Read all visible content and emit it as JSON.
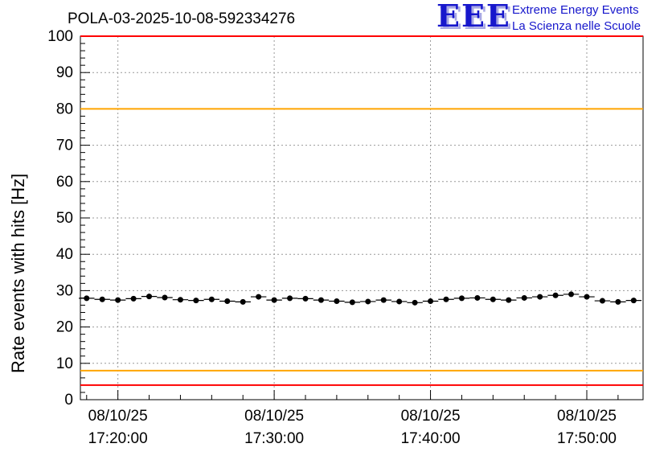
{
  "title": "POLA-03-2025-10-08-592334276",
  "logo": {
    "text": "EEE",
    "line1": "Extreme Energy Events",
    "line2": "La Scienza nelle Scuole",
    "color": "#1717cc",
    "shadow_color": "#a8a8e4"
  },
  "chart_data": {
    "type": "scatter",
    "title": "POLA-03-2025-10-08-592334276",
    "xlabel": "",
    "ylabel": "Rate events with hits [Hz]",
    "ylim": [
      0,
      100
    ],
    "xlim_minutes": [
      1037.6,
      1073.6
    ],
    "grid": true,
    "grid_color": "#999999",
    "legend": "none",
    "y_ticks": [
      0,
      10,
      20,
      30,
      40,
      50,
      60,
      70,
      80,
      90,
      100
    ],
    "x_ticks": [
      {
        "minutes": 1040,
        "date": "08/10/25",
        "time": "17:20:00"
      },
      {
        "minutes": 1050,
        "date": "08/10/25",
        "time": "17:30:00"
      },
      {
        "minutes": 1060,
        "date": "08/10/25",
        "time": "17:40:00"
      },
      {
        "minutes": 1070,
        "date": "08/10/25",
        "time": "17:50:00"
      }
    ],
    "reference_lines": [
      {
        "y": 100,
        "color": "#ff0000"
      },
      {
        "y": 80,
        "color": "#ffa500"
      },
      {
        "y": 8,
        "color": "#ffa500"
      },
      {
        "y": 4,
        "color": "#ff0000"
      }
    ],
    "series": [
      {
        "name": "rate-events-with-hits",
        "color": "#000000",
        "marker": "filled-circle",
        "x_err_minutes": 0.5,
        "y_err": 0.5,
        "x_minutes": [
          1038,
          1039,
          1040,
          1041,
          1042,
          1043,
          1044,
          1045,
          1046,
          1047,
          1048,
          1049,
          1050,
          1051,
          1052,
          1053,
          1054,
          1055,
          1056,
          1057,
          1058,
          1059,
          1060,
          1061,
          1062,
          1063,
          1064,
          1065,
          1066,
          1067,
          1068,
          1069,
          1070,
          1071,
          1072,
          1073
        ],
        "y": [
          27.9,
          27.6,
          27.4,
          27.8,
          28.4,
          28.1,
          27.5,
          27.3,
          27.6,
          27.1,
          26.9,
          28.3,
          27.4,
          27.9,
          27.8,
          27.4,
          27.1,
          26.8,
          27.0,
          27.4,
          27.0,
          26.7,
          27.1,
          27.6,
          27.9,
          28.0,
          27.6,
          27.4,
          28.0,
          28.3,
          28.7,
          29.0,
          28.3,
          27.2,
          26.9,
          27.3
        ]
      }
    ]
  }
}
